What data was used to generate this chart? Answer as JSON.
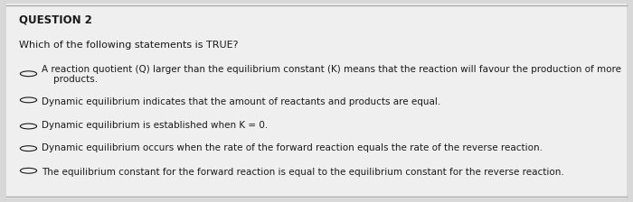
{
  "background_color": "#d8d8d8",
  "card_color": "#efefef",
  "title": "QUESTION 2",
  "question": "Which of the following statements is TRUE?",
  "options": [
    "A reaction quotient (Q) larger than the equilibrium constant (K) means that the reaction will favour the production of more\n    products.",
    "Dynamic equilibrium indicates that the amount of reactants and products are equal.",
    "Dynamic equilibrium is established when K = 0.",
    "Dynamic equilibrium occurs when the rate of the forward reaction equals the rate of the reverse reaction.",
    "The equilibrium constant for the forward reaction is equal to the equilibrium constant for the reverse reaction."
  ],
  "title_fontsize": 8.5,
  "question_fontsize": 8,
  "option_fontsize": 7.5,
  "text_color": "#1a1a1a",
  "circle_color": "#1a1a1a"
}
